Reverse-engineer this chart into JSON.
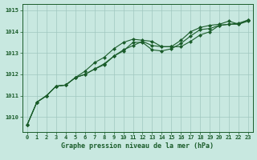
{
  "title": "Graphe pression niveau de la mer (hPa)",
  "background_color": "#c8e8e0",
  "grid_color": "#a0c8c0",
  "line_color": "#1a5c2a",
  "marker_color": "#1a5c2a",
  "xlim": [
    -0.5,
    23.5
  ],
  "ylim": [
    1009.3,
    1015.3
  ],
  "yticks": [
    1010,
    1011,
    1012,
    1013,
    1014,
    1015
  ],
  "xticks": [
    0,
    1,
    2,
    3,
    4,
    5,
    6,
    7,
    8,
    9,
    10,
    11,
    12,
    13,
    14,
    15,
    16,
    17,
    18,
    19,
    20,
    21,
    22,
    23
  ],
  "series1": [
    1009.65,
    1010.7,
    1011.0,
    1011.45,
    1011.5,
    1011.85,
    1012.0,
    1012.25,
    1012.5,
    1012.85,
    1013.15,
    1013.35,
    1013.55,
    1013.35,
    1013.3,
    1013.3,
    1013.3,
    1013.55,
    1013.85,
    1014.0,
    1014.3,
    1014.35,
    1014.4,
    1014.55
  ],
  "series2": [
    1009.65,
    1010.7,
    1011.0,
    1011.45,
    1011.5,
    1011.85,
    1012.0,
    1012.25,
    1012.45,
    1012.85,
    1013.1,
    1013.5,
    1013.5,
    1013.15,
    1013.1,
    1013.2,
    1013.45,
    1013.8,
    1014.1,
    1014.15,
    1014.3,
    1014.35,
    1014.35,
    1014.5
  ],
  "series3": [
    1009.65,
    1010.7,
    1011.0,
    1011.45,
    1011.5,
    1011.85,
    1012.15,
    1012.55,
    1012.8,
    1013.2,
    1013.5,
    1013.65,
    1013.6,
    1013.55,
    1013.3,
    1013.3,
    1013.6,
    1014.0,
    1014.2,
    1014.3,
    1014.35,
    1014.5,
    1014.35,
    1014.55
  ]
}
